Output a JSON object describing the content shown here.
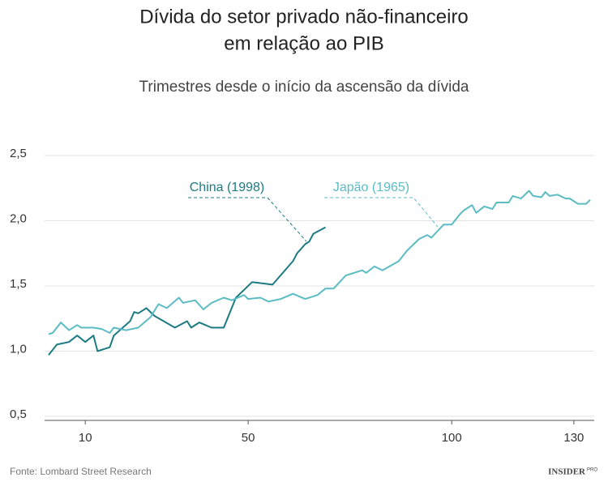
{
  "chart_data": {
    "type": "line",
    "title": [
      "Dívida do setor privado não-financeiro",
      "em relação ao PIB"
    ],
    "subtitle": "Trimestres desde o início da ascensão da dívida",
    "source": "Fonte: Lombard Street Research",
    "logo": [
      "INSIDER",
      "PRO"
    ],
    "xlim": [
      0,
      135
    ],
    "xticks": [
      10,
      50,
      100,
      130
    ],
    "ylim": [
      0.5,
      2.5
    ],
    "yticks": [
      {
        "value": 0.5,
        "label": "0,5"
      },
      {
        "value": 1.0,
        "label": "1,0"
      },
      {
        "value": 1.5,
        "label": "1,5"
      },
      {
        "value": 2.0,
        "label": "2,0"
      },
      {
        "value": 2.5,
        "label": "2,5"
      }
    ],
    "grid": true,
    "series": [
      {
        "name": "China (1998)",
        "color": "#1b7b82",
        "x": [
          1,
          3,
          6,
          8,
          10,
          12,
          13,
          16,
          17,
          21,
          22,
          23,
          25,
          27,
          32,
          35,
          36,
          38,
          41,
          44,
          47,
          51,
          56,
          61,
          62,
          64,
          65,
          66,
          69
        ],
        "values": [
          0.97,
          1.05,
          1.07,
          1.12,
          1.07,
          1.12,
          1.0,
          1.03,
          1.12,
          1.23,
          1.3,
          1.29,
          1.33,
          1.27,
          1.18,
          1.23,
          1.18,
          1.22,
          1.18,
          1.18,
          1.41,
          1.53,
          1.51,
          1.69,
          1.75,
          1.82,
          1.84,
          1.9,
          1.95
        ]
      },
      {
        "name": "Japão (1965)",
        "color": "#5cbcc4",
        "x": [
          1,
          2,
          4,
          6,
          8,
          9,
          12,
          14,
          16,
          17,
          20,
          23,
          26,
          28,
          30,
          33,
          34,
          37,
          39,
          41,
          44,
          46,
          49,
          50,
          53,
          55,
          58,
          61,
          64,
          67,
          69,
          71,
          74,
          75,
          78,
          79,
          81,
          83,
          87,
          89,
          92,
          94,
          95,
          98,
          100,
          102,
          103,
          105,
          106,
          108,
          110,
          111,
          114,
          115,
          117,
          119,
          120,
          122,
          123,
          124,
          126,
          128,
          129,
          131,
          133,
          134
        ],
        "values": [
          1.13,
          1.14,
          1.22,
          1.16,
          1.2,
          1.18,
          1.18,
          1.17,
          1.14,
          1.18,
          1.16,
          1.18,
          1.26,
          1.36,
          1.33,
          1.41,
          1.37,
          1.39,
          1.32,
          1.37,
          1.41,
          1.39,
          1.43,
          1.4,
          1.41,
          1.38,
          1.4,
          1.44,
          1.4,
          1.43,
          1.48,
          1.48,
          1.58,
          1.59,
          1.62,
          1.6,
          1.65,
          1.62,
          1.69,
          1.77,
          1.86,
          1.89,
          1.87,
          1.97,
          1.97,
          2.05,
          2.08,
          2.12,
          2.06,
          2.11,
          2.09,
          2.14,
          2.14,
          2.19,
          2.17,
          2.23,
          2.19,
          2.18,
          2.22,
          2.19,
          2.2,
          2.17,
          2.17,
          2.13,
          2.13,
          2.16
        ]
      }
    ]
  }
}
